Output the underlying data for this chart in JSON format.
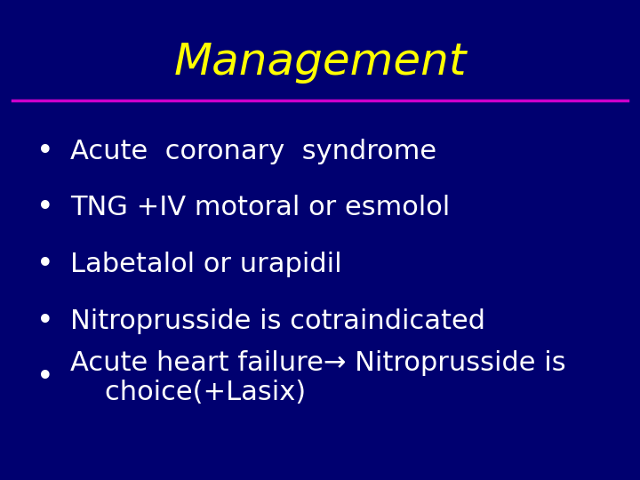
{
  "title": "Management",
  "title_color": "#FFFF00",
  "title_fontsize": 36,
  "title_fontstyle": "italic",
  "underline_color": "#CC00CC",
  "bg_color": "#000070",
  "bullet_color": "#FFFFFF",
  "bullet_fontsize": 22,
  "bullet_items": [
    "Acute  coronary  syndrome",
    "TNG +IV motoral or esmolol",
    "Labetalol or urapidil",
    "Nitroprusside is cotraindicated",
    "Acute heart failure→ Nitroprusside is\n    choice(+Lasix)"
  ]
}
